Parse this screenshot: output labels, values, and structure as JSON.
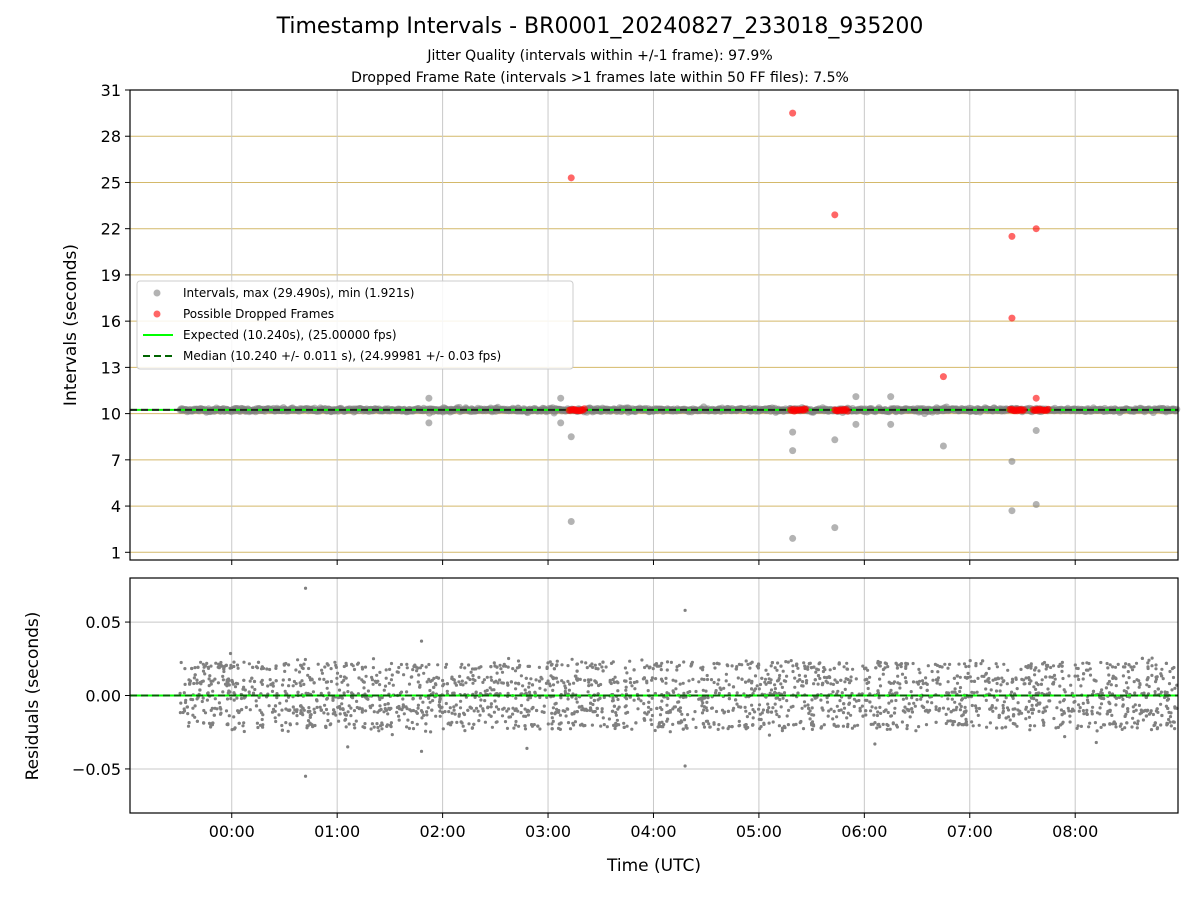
{
  "title": "Timestamp Intervals - BR0001_20240827_233018_935200",
  "subtitle_jitter": "Jitter Quality (intervals within +/-1 frame): 97.9%",
  "subtitle_dropped": "Dropped Frame Rate (intervals >1 frames late within 50 FF files): 7.5%",
  "colors": {
    "intervals": "#808080",
    "dropped": "#ff0000",
    "expected": "#00ff00",
    "median": "#006400",
    "hgrid": "#d4b96a",
    "grid": "#c8c8c8"
  },
  "chart_data": [
    {
      "type": "scatter",
      "name": "intervals",
      "xlabel": "",
      "ylabel": "Intervals (seconds)",
      "ylim": [
        0.5,
        31
      ],
      "yticks": [
        "1",
        "4",
        "7",
        "10",
        "13",
        "16",
        "19",
        "22",
        "25",
        "28",
        "31"
      ],
      "xlim_hours": [
        -0.965,
        8.975
      ],
      "xticks": [
        "00:00",
        "01:00",
        "02:00",
        "03:00",
        "04:00",
        "05:00",
        "06:00",
        "07:00",
        "08:00"
      ],
      "grid": true,
      "legend_placement": "center-left",
      "legend": {
        "intervals": "Intervals, max (29.490s), min (1.921s)",
        "dropped": "Possible Dropped Frames",
        "expected": "Expected (10.240s), (25.00000 fps)",
        "median": "Median (10.240 +/- 0.011 s), (24.99981 +/- 0.03 fps)"
      },
      "expected_value": 10.24,
      "median_value": 10.24,
      "time_range_hours": [
        -0.49,
        8.97
      ],
      "series": [
        {
          "name": "Intervals, max (29.490s), min (1.921s)",
          "points": [
            [
              1.87,
              11.0
            ],
            [
              1.87,
              9.4
            ],
            [
              3.12,
              11.0
            ],
            [
              3.12,
              9.4
            ],
            [
              3.22,
              8.5
            ],
            [
              3.22,
              3.0
            ],
            [
              5.32,
              7.6
            ],
            [
              5.32,
              8.8
            ],
            [
              5.32,
              1.9
            ],
            [
              5.72,
              8.3
            ],
            [
              5.72,
              2.6
            ],
            [
              5.92,
              11.1
            ],
            [
              5.92,
              9.3
            ],
            [
              6.25,
              11.1
            ],
            [
              6.25,
              9.3
            ],
            [
              6.75,
              7.9
            ],
            [
              7.4,
              6.9
            ],
            [
              7.4,
              3.7
            ],
            [
              7.63,
              8.9
            ],
            [
              7.63,
              4.1
            ]
          ]
        },
        {
          "name": "Possible Dropped Frames",
          "points": [
            [
              3.22,
              25.3
            ],
            [
              5.32,
              29.5
            ],
            [
              5.72,
              22.9
            ],
            [
              7.4,
              21.5
            ],
            [
              7.4,
              16.2
            ],
            [
              7.63,
              22.0
            ],
            [
              6.75,
              12.4
            ],
            [
              7.63,
              11.0
            ]
          ],
          "clusters": [
            [
              3.2,
              3.35
            ],
            [
              5.3,
              5.45
            ],
            [
              5.72,
              5.85
            ],
            [
              7.38,
              7.52
            ],
            [
              7.6,
              7.75
            ]
          ]
        }
      ]
    },
    {
      "type": "scatter",
      "name": "residuals",
      "xlabel": "Time (UTC)",
      "ylabel": "Residuals (seconds)",
      "ylim": [
        -0.08,
        0.08
      ],
      "yticks": [
        "−0.05",
        "0.00",
        "0.05"
      ],
      "yticks_values": [
        -0.05,
        0.0,
        0.05
      ],
      "xticks": [
        "00:00",
        "01:00",
        "02:00",
        "03:00",
        "04:00",
        "05:00",
        "06:00",
        "07:00",
        "08:00"
      ],
      "grid": true,
      "outliers": [
        [
          0.7,
          0.073
        ],
        [
          0.7,
          -0.055
        ],
        [
          1.8,
          0.037
        ],
        [
          1.8,
          -0.038
        ],
        [
          4.3,
          0.058
        ],
        [
          4.3,
          -0.048
        ],
        [
          2.8,
          -0.036
        ],
        [
          1.1,
          -0.035
        ],
        [
          5.1,
          -0.027
        ],
        [
          6.1,
          -0.033
        ],
        [
          8.7,
          0.024
        ],
        [
          8.2,
          -0.032
        ],
        [
          7.9,
          -0.028
        ]
      ]
    }
  ]
}
